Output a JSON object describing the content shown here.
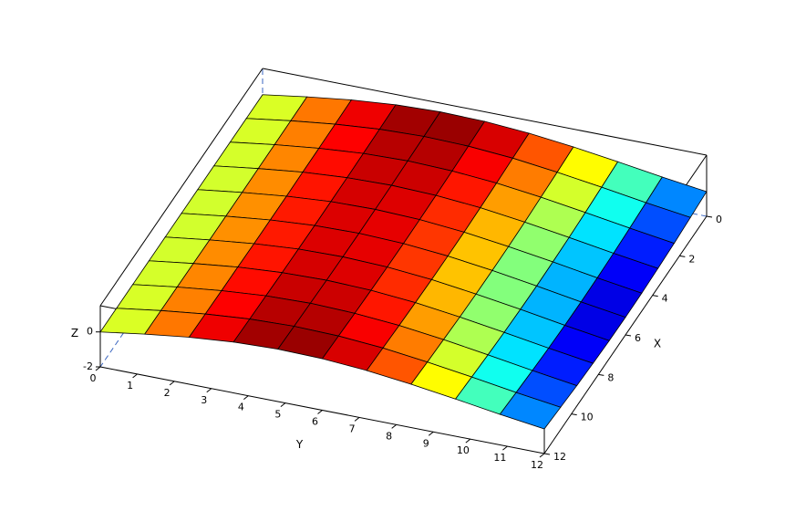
{
  "chart_data": {
    "type": "surface",
    "colormap": "jet",
    "x_label": "X",
    "y_label": "Y",
    "z_label": "Z",
    "x": [
      0,
      1.2,
      2.4,
      3.6,
      4.8,
      6,
      7.2,
      8.4,
      9.6,
      10.8,
      12
    ],
    "y": [
      0,
      1.2,
      2.4,
      3.6,
      4.8,
      6,
      7.2,
      8.4,
      9.6,
      10.8,
      12
    ],
    "z": [
      [
        0,
        0.37,
        0.69,
        0.91,
        1.0,
        0.95,
        0.77,
        0.48,
        0.13,
        -0.25,
        -0.59
      ],
      [
        0,
        0.36,
        0.66,
        0.87,
        0.95,
        0.89,
        0.7,
        0.39,
        0.03,
        -0.36,
        -0.71
      ],
      [
        0,
        0.35,
        0.64,
        0.84,
        0.91,
        0.83,
        0.63,
        0.32,
        -0.06,
        -0.46,
        -0.83
      ],
      [
        0,
        0.34,
        0.63,
        0.81,
        0.87,
        0.79,
        0.58,
        0.25,
        -0.13,
        -0.54,
        -0.91
      ],
      [
        0,
        0.33,
        0.61,
        0.8,
        0.85,
        0.76,
        0.54,
        0.21,
        -0.17,
        -0.59,
        -0.97
      ],
      [
        0,
        0.33,
        0.61,
        0.79,
        0.84,
        0.75,
        0.53,
        0.2,
        -0.19,
        -0.61,
        -0.99
      ],
      [
        0,
        0.33,
        0.61,
        0.8,
        0.85,
        0.76,
        0.54,
        0.21,
        -0.17,
        -0.59,
        -0.97
      ],
      [
        0,
        0.34,
        0.63,
        0.81,
        0.87,
        0.79,
        0.58,
        0.25,
        -0.13,
        -0.54,
        -0.91
      ],
      [
        0,
        0.35,
        0.64,
        0.84,
        0.91,
        0.83,
        0.63,
        0.32,
        -0.06,
        -0.46,
        -0.83
      ],
      [
        0,
        0.36,
        0.66,
        0.87,
        0.95,
        0.89,
        0.7,
        0.39,
        0.03,
        -0.36,
        -0.71
      ],
      [
        0,
        0.37,
        0.69,
        0.91,
        1.0,
        0.95,
        0.77,
        0.48,
        0.13,
        -0.25,
        -0.59
      ]
    ],
    "xlim": [
      0,
      12
    ],
    "ylim": [
      0,
      12
    ],
    "zlim": [
      -2,
      1.5
    ],
    "xticks": [
      0,
      2,
      4,
      6,
      8,
      10,
      12
    ],
    "yticks": [
      0,
      1,
      2,
      3,
      4,
      5,
      6,
      7,
      8,
      9,
      10,
      11,
      12
    ],
    "zticks": [
      -2,
      0
    ]
  }
}
